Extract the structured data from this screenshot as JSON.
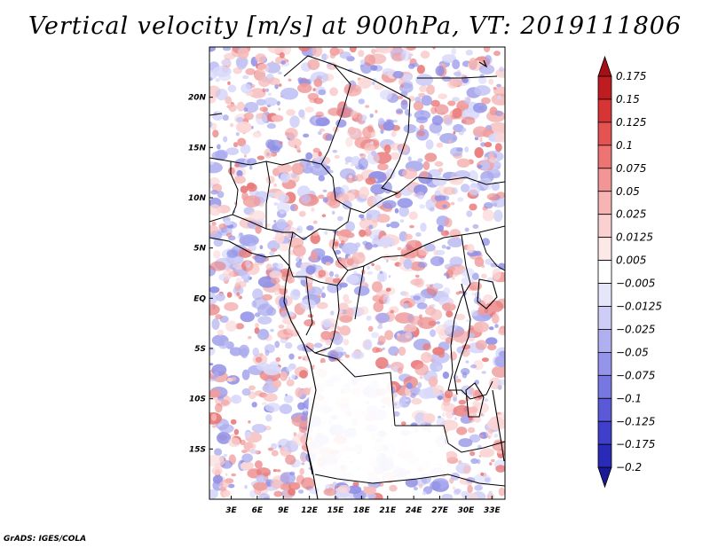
{
  "title": "Vertical velocity [m/s] at 900hPa, VT: 2019111806",
  "credit": "GrADS: IGES/COLA",
  "map": {
    "lat_labels": [
      "20N",
      "15N",
      "10N",
      "5N",
      "EQ",
      "5S",
      "10S",
      "15S"
    ],
    "lat_values": [
      20,
      15,
      10,
      5,
      0,
      -5,
      -10,
      -15
    ],
    "lon_labels": [
      "3E",
      "6E",
      "9E",
      "12E",
      "15E",
      "18E",
      "21E",
      "24E",
      "27E",
      "30E",
      "33E"
    ],
    "lon_values": [
      3,
      6,
      9,
      12,
      15,
      18,
      21,
      24,
      27,
      30,
      33
    ],
    "lon_range": [
      0.5,
      34.5
    ],
    "lat_range": [
      -20,
      25
    ]
  },
  "colorbar": {
    "levels": [
      "0.175",
      "0.15",
      "0.125",
      "0.1",
      "0.075",
      "0.05",
      "0.025",
      "0.0125",
      "0.005",
      "-0.005",
      "-0.0125",
      "-0.025",
      "-0.05",
      "-0.075",
      "-0.1",
      "-0.125",
      "-0.175",
      "-0.2"
    ],
    "colors": [
      "#a50f15",
      "#bf1c22",
      "#d73535",
      "#e45252",
      "#ee7373",
      "#f29595",
      "#f6b4b4",
      "#fad0d0",
      "#fde8e8",
      "#ffffff",
      "#e6e6fb",
      "#cdcdf7",
      "#b0b0f1",
      "#9494ea",
      "#7777e2",
      "#5a5ad8",
      "#3f3fcc",
      "#2a2ab8",
      "#1a1a96"
    ]
  }
}
